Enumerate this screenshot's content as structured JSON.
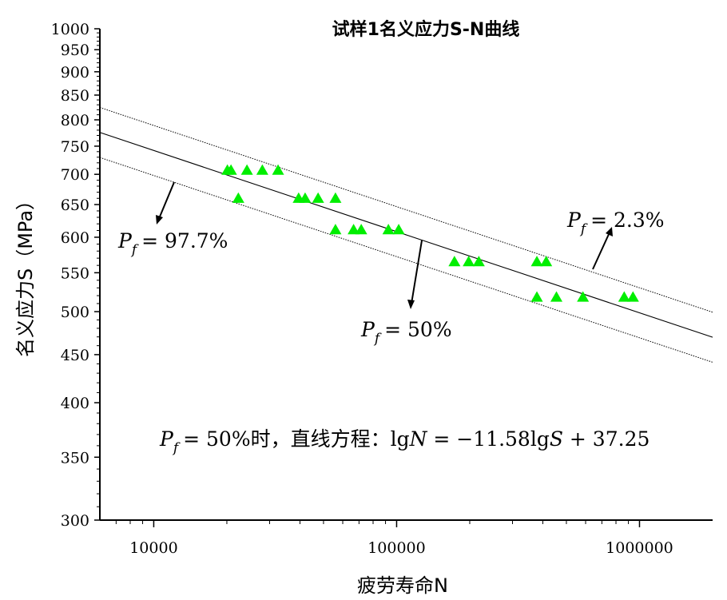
{
  "chart_data": {
    "type": "scatter",
    "title": "试样1名义应力S-N曲线",
    "xlabel": "疲劳寿命N",
    "ylabel": "名义应力S（MPa）",
    "x_scale": "log",
    "y_scale": "log",
    "xlim": [
      6000,
      2000000
    ],
    "ylim": [
      300,
      1000
    ],
    "x_ticks": [
      10000,
      100000,
      1000000
    ],
    "x_tick_labels": [
      "10000",
      "100000",
      "1000000"
    ],
    "y_ticks": [
      300,
      350,
      400,
      450,
      500,
      550,
      600,
      650,
      700,
      750,
      800,
      850,
      900,
      950,
      1000
    ],
    "y_tick_labels": [
      "300",
      "350",
      "400",
      "450",
      "500",
      "550",
      "600",
      "650",
      "700",
      "750",
      "800",
      "850",
      "900",
      "950",
      "1000"
    ],
    "marker_color": "#00ee00",
    "points": [
      {
        "x": 20100,
        "y": 707
      },
      {
        "x": 20800,
        "y": 707
      },
      {
        "x": 24200,
        "y": 707
      },
      {
        "x": 28000,
        "y": 707
      },
      {
        "x": 32500,
        "y": 707
      },
      {
        "x": 22300,
        "y": 660
      },
      {
        "x": 39500,
        "y": 660
      },
      {
        "x": 42000,
        "y": 660
      },
      {
        "x": 47500,
        "y": 660
      },
      {
        "x": 56000,
        "y": 660
      },
      {
        "x": 56000,
        "y": 611
      },
      {
        "x": 66500,
        "y": 611
      },
      {
        "x": 71500,
        "y": 611
      },
      {
        "x": 92500,
        "y": 611
      },
      {
        "x": 102000,
        "y": 611
      },
      {
        "x": 173000,
        "y": 565
      },
      {
        "x": 198000,
        "y": 565
      },
      {
        "x": 218000,
        "y": 565
      },
      {
        "x": 378000,
        "y": 565
      },
      {
        "x": 413000,
        "y": 565
      },
      {
        "x": 378000,
        "y": 518
      },
      {
        "x": 455000,
        "y": 518
      },
      {
        "x": 585000,
        "y": 518
      },
      {
        "x": 865000,
        "y": 518
      },
      {
        "x": 940000,
        "y": 518
      }
    ],
    "lines": [
      {
        "name": "Pf = 50%",
        "style": "solid",
        "x": [
          6000,
          2000000
        ],
        "y": [
          775.6,
          469.6
        ]
      },
      {
        "name": "Pf = 2.3%",
        "style": "dotted",
        "x": [
          6000,
          2000000
        ],
        "y": [
          824.6,
          499.3
        ]
      },
      {
        "name": "Pf = 97.7%",
        "style": "dotted",
        "x": [
          6000,
          2000000
        ],
        "y": [
          729.5,
          441.7
        ]
      }
    ],
    "annotations": {
      "pf_97": {
        "sub": "f",
        "value": "= 97.7%"
      },
      "pf_50": {
        "sub": "f",
        "value": "= 50%"
      },
      "pf_2": {
        "sub": "f",
        "value": "= 2.3%"
      },
      "equation_prefix": "= 50%时，直线方程：lg",
      "equation_N": "N",
      "equation_middle": " = −11.58lg",
      "equation_S": "S",
      "equation_suffix": " + 37.25"
    },
    "grid": false,
    "legend": "none"
  }
}
